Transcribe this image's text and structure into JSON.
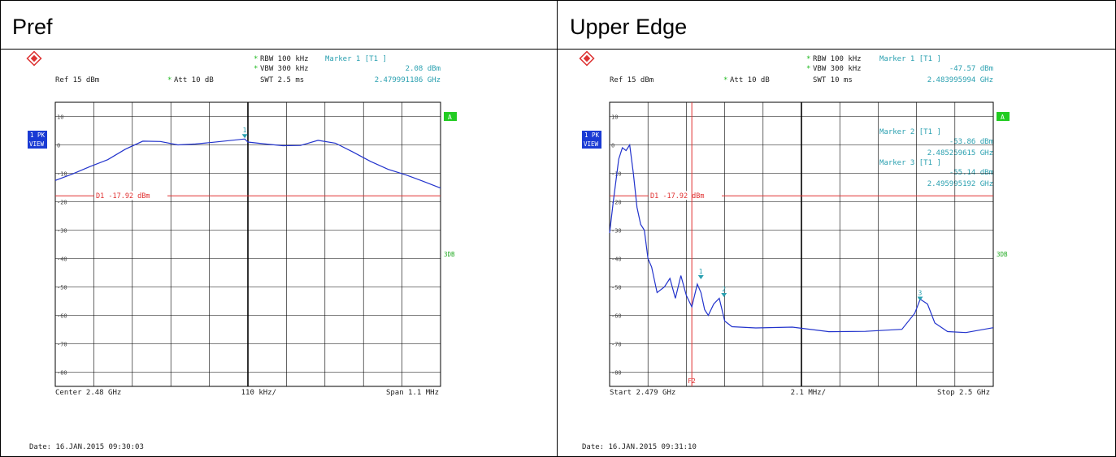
{
  "panels": [
    {
      "title": "Pref",
      "header": {
        "rbw": "RBW 100 kHz",
        "vbw": "VBW 300 kHz",
        "swt": "SWT 2.5 ms",
        "ref": "Ref  15 dBm",
        "att": "Att  10 dB",
        "markers": [
          {
            "label": "Marker 1 [T1 ]",
            "level": "2.08 dBm",
            "freq": "2.479991186 GHz"
          }
        ]
      },
      "side": {
        "trace": "1 PK",
        "view": "VIEW",
        "a_badge": "A",
        "db3": "3DB"
      },
      "footer": {
        "left": "Center  2.48 GHz",
        "mid": "110 kHz/",
        "right": "Span  1.1 MHz"
      },
      "date": "Date: 16.JAN.2015  09:30:03",
      "chart_data": {
        "type": "line",
        "xlim": [
          2.47945,
          2.48055
        ],
        "ylim": [
          -85,
          15
        ],
        "yticks": [
          10,
          0,
          -10,
          -20,
          -30,
          -40,
          -50,
          -60,
          -70,
          -80
        ],
        "ytick_labels": [
          "10",
          "0",
          "-10",
          "-20",
          "-30",
          "-40",
          "-50",
          "-60",
          "-70",
          "-80"
        ],
        "display_line": {
          "label": "D1  -17.92 dBm",
          "value": -17.92
        },
        "markers": [
          {
            "id": "1",
            "x": 2.479991,
            "y": 2.08
          }
        ],
        "series": [
          {
            "x": [
              2.47945,
              2.4795,
              2.47955,
              2.4796,
              2.47965,
              2.4797,
              2.47975,
              2.4798,
              2.47985,
              2.4799,
              2.479991,
              2.48,
              2.48005,
              2.4801,
              2.48015,
              2.4802,
              2.48025,
              2.4803,
              2.48035,
              2.4804,
              2.48045,
              2.4805,
              2.48055
            ],
            "values": [
              -12.5,
              -10.2,
              -7.6,
              -5.2,
              -1.5,
              1.3,
              1.2,
              0.0,
              0.3,
              0.9,
              2.1,
              1.0,
              0.3,
              -0.3,
              -0.2,
              1.6,
              0.6,
              -2.5,
              -5.8,
              -8.6,
              -10.5,
              -12.8,
              -15.2
            ]
          }
        ]
      }
    },
    {
      "title": "Upper Edge",
      "header": {
        "rbw": "RBW 100 kHz",
        "vbw": "VBW 300 kHz",
        "swt": "SWT 10 ms",
        "ref": "Ref  15 dBm",
        "att": "Att  10 dB",
        "markers": [
          {
            "label": "Marker 1 [T1 ]",
            "level": "-47.57 dBm",
            "freq": "2.483995994 GHz"
          },
          {
            "label": "Marker 2 [T1 ]",
            "level": "-53.86 dBm",
            "freq": "2.485259615 GHz"
          },
          {
            "label": "Marker 3 [T1 ]",
            "level": "-55.14 dBm",
            "freq": "2.495995192 GHz"
          }
        ]
      },
      "side": {
        "trace": "1 PK",
        "view": "VIEW",
        "a_badge": "A",
        "db3": "3DB"
      },
      "footer": {
        "left": "Start  2.479 GHz",
        "mid": "2.1 MHz/",
        "right": "Stop  2.5 GHz"
      },
      "date": "Date: 16.JAN.2015  09:31:10",
      "chart_data": {
        "type": "line",
        "xlim": [
          2.479,
          2.5
        ],
        "ylim": [
          -85,
          15
        ],
        "yticks": [
          10,
          0,
          -10,
          -20,
          -30,
          -40,
          -50,
          -60,
          -70,
          -80
        ],
        "ytick_labels": [
          "10",
          "0",
          "-10",
          "-20",
          "-30",
          "-40",
          "-50",
          "-60",
          "-70",
          "-80"
        ],
        "display_line": {
          "label": "D1  -17.92 dBm",
          "value": -17.92
        },
        "f2_line": {
          "label": "F2",
          "x": 2.4835
        },
        "markers": [
          {
            "id": "1",
            "x": 2.483996,
            "y": -47.57
          },
          {
            "id": "2",
            "x": 2.48526,
            "y": -53.86
          },
          {
            "id": "3",
            "x": 2.495995,
            "y": -55.14
          }
        ],
        "series": [
          {
            "x": [
              2.479,
              2.4792,
              2.4795,
              2.4797,
              2.4799,
              2.4801,
              2.4803,
              2.4805,
              2.4807,
              2.4809,
              2.4811,
              2.4813,
              2.4816,
              2.482,
              2.4823,
              2.4826,
              2.4829,
              2.4832,
              2.4835,
              2.4838,
              2.484,
              2.4842,
              2.4844,
              2.4847,
              2.485,
              2.4853,
              2.4857,
              2.487,
              2.489,
              2.491,
              2.493,
              2.495,
              2.4957,
              2.496,
              2.4964,
              2.4968,
              2.4975,
              2.4985,
              2.5
            ],
            "values": [
              -31,
              -20,
              -5,
              -1,
              -2,
              0,
              -10,
              -22,
              -28,
              -30,
              -40,
              -43,
              -52,
              -50,
              -47,
              -54,
              -46,
              -53,
              -57,
              -49,
              -52,
              -58,
              -60,
              -56,
              -54,
              -62,
              -64,
              -65,
              -64,
              -65,
              -65,
              -65,
              -60,
              -55,
              -56,
              -62,
              -65,
              -66,
              -65
            ]
          }
        ]
      }
    }
  ]
}
